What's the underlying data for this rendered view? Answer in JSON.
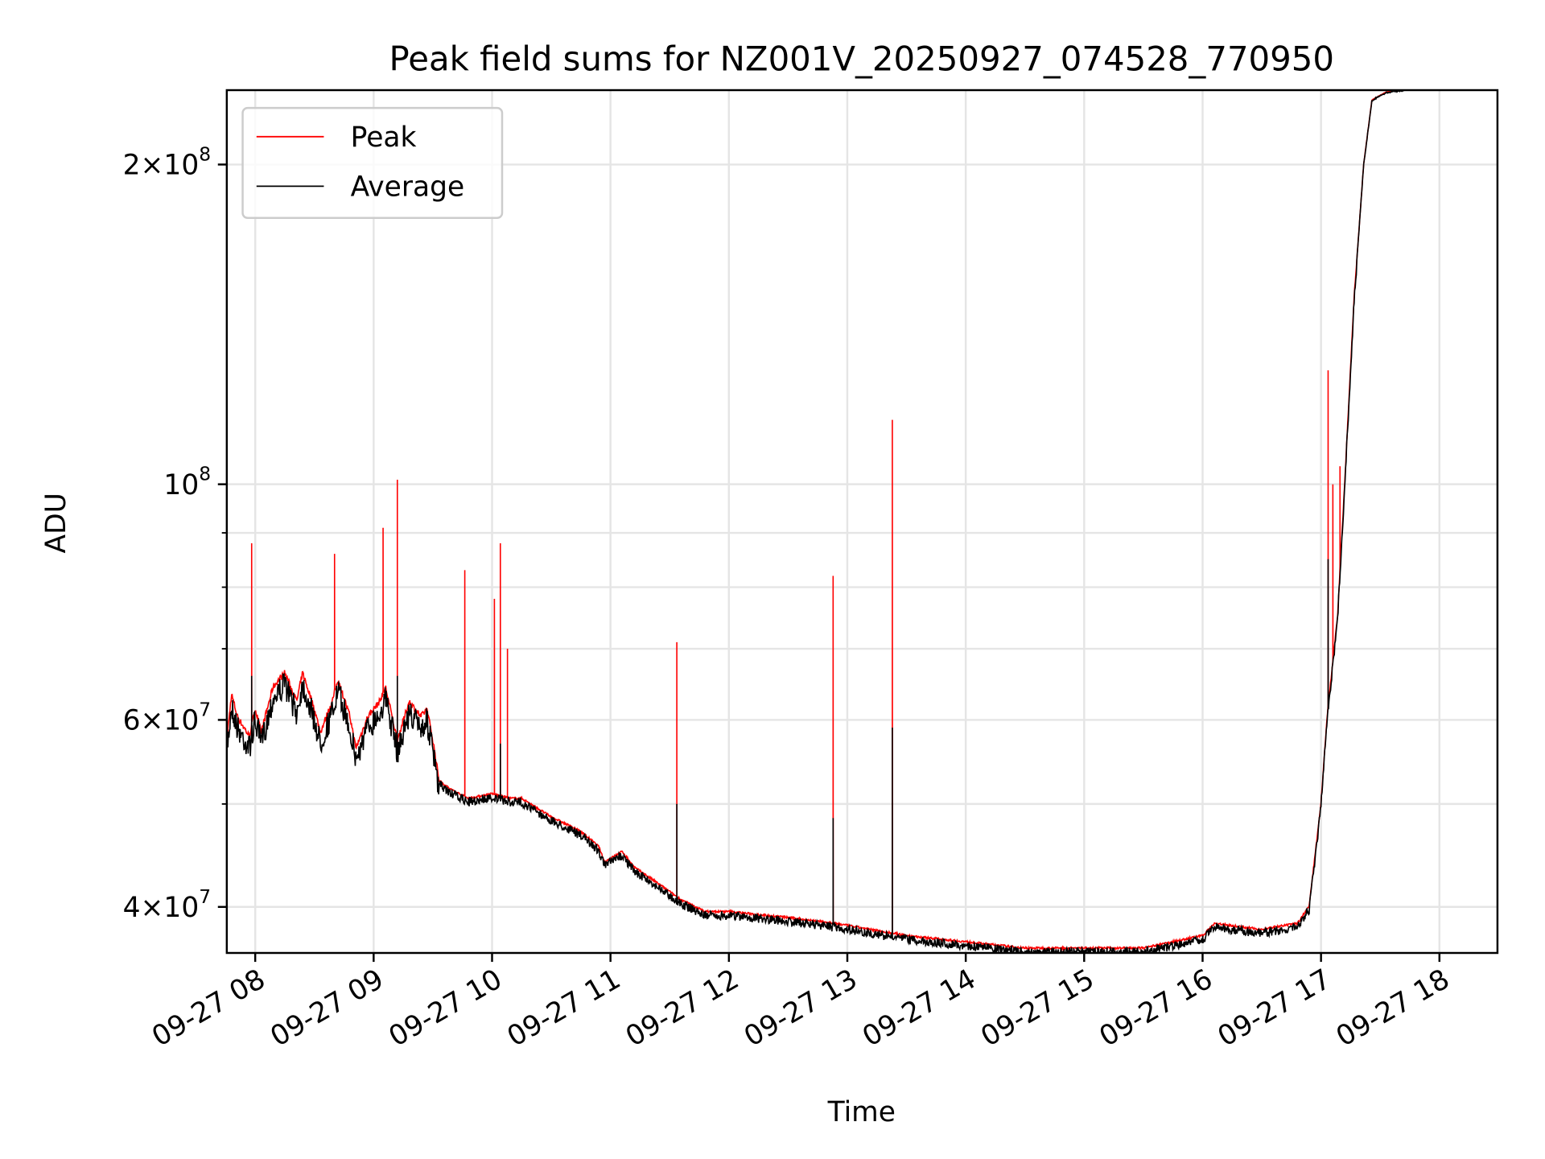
{
  "chart_data": {
    "type": "line",
    "title": "Peak field sums for NZ001V_20250927_074528_770950",
    "xlabel": "Time",
    "ylabel": "ADU",
    "yscale": "log",
    "xlim_hours": [
      7.76,
      18.49
    ],
    "ylim": [
      36200000,
      235000000
    ],
    "grid": true,
    "legend_position": "upper-left",
    "x_ticks": [
      {
        "hour": 8,
        "label": "09-27 08"
      },
      {
        "hour": 9,
        "label": "09-27 09"
      },
      {
        "hour": 10,
        "label": "09-27 10"
      },
      {
        "hour": 11,
        "label": "09-27 11"
      },
      {
        "hour": 12,
        "label": "09-27 12"
      },
      {
        "hour": 13,
        "label": "09-27 13"
      },
      {
        "hour": 14,
        "label": "09-27 14"
      },
      {
        "hour": 15,
        "label": "09-27 15"
      },
      {
        "hour": 16,
        "label": "09-27 16"
      },
      {
        "hour": 17,
        "label": "09-27 17"
      },
      {
        "hour": 18,
        "label": "09-27 18"
      }
    ],
    "y_major_ticks": [
      {
        "value": 40000000,
        "mant": "4",
        "exp": "7"
      },
      {
        "value": 60000000,
        "mant": "6",
        "exp": "7"
      },
      {
        "value": 100000000,
        "mant": "",
        "exp": "8"
      },
      {
        "value": 200000000,
        "mant": "2",
        "exp": "8"
      }
    ],
    "y_minor_ticks": [
      50000000,
      70000000,
      80000000,
      90000000
    ],
    "series": [
      {
        "name": "Peak",
        "color": "#ff0000"
      },
      {
        "name": "Average",
        "color": "#000000"
      }
    ],
    "average_trend": [
      [
        7.76,
        57000000.0
      ],
      [
        7.8,
        63000000.0
      ],
      [
        7.85,
        60000000.0
      ],
      [
        7.95,
        57500000.0
      ],
      [
        8.0,
        61000000.0
      ],
      [
        8.05,
        58000000.0
      ],
      [
        8.15,
        64000000.0
      ],
      [
        8.25,
        66000000.0
      ],
      [
        8.35,
        62000000.0
      ],
      [
        8.4,
        66000000.0
      ],
      [
        8.5,
        61000000.0
      ],
      [
        8.55,
        58000000.0
      ],
      [
        8.65,
        62000000.0
      ],
      [
        8.7,
        65000000.0
      ],
      [
        8.8,
        60000000.0
      ],
      [
        8.85,
        56000000.0
      ],
      [
        8.95,
        60000000.0
      ],
      [
        9.05,
        62000000.0
      ],
      [
        9.1,
        64000000.0
      ],
      [
        9.2,
        57000000.0
      ],
      [
        9.3,
        62000000.0
      ],
      [
        9.4,
        60000000.0
      ],
      [
        9.45,
        61000000.0
      ],
      [
        9.5,
        57000000.0
      ],
      [
        9.55,
        52500000.0
      ],
      [
        9.65,
        51500000.0
      ],
      [
        9.8,
        50500000.0
      ],
      [
        10.0,
        51000000.0
      ],
      [
        10.15,
        50500000.0
      ],
      [
        10.25,
        50500000.0
      ],
      [
        10.5,
        48500000.0
      ],
      [
        10.75,
        47000000.0
      ],
      [
        10.9,
        45500000.0
      ],
      [
        10.95,
        44000000.0
      ],
      [
        11.1,
        45000000.0
      ],
      [
        11.2,
        43500000.0
      ],
      [
        11.4,
        42000000.0
      ],
      [
        11.6,
        40500000.0
      ],
      [
        11.8,
        39500000.0
      ],
      [
        12.0,
        39500000.0
      ],
      [
        12.5,
        39000000.0
      ],
      [
        12.9,
        38500000.0
      ],
      [
        13.5,
        37500000.0
      ],
      [
        14.0,
        37000000.0
      ],
      [
        14.5,
        36500000.0
      ],
      [
        15.0,
        36500000.0
      ],
      [
        15.5,
        36500000.0
      ],
      [
        16.0,
        37500000.0
      ],
      [
        16.1,
        38500000.0
      ],
      [
        16.5,
        38000000.0
      ],
      [
        16.8,
        38500000.0
      ],
      [
        16.9,
        40000000.0
      ],
      [
        17.0,
        50000000.0
      ],
      [
        17.05,
        60000000.0
      ],
      [
        17.14,
        75000000.0
      ],
      [
        17.2,
        100000000.0
      ],
      [
        17.28,
        150000000.0
      ],
      [
        17.36,
        200000000.0
      ],
      [
        17.43,
        230000000.0
      ],
      [
        17.55,
        234000000.0
      ],
      [
        17.7,
        235000000.0
      ]
    ],
    "peak_spikes": [
      [
        7.97,
        88000000.0
      ],
      [
        8.67,
        86000000.0
      ],
      [
        9.08,
        91000000.0
      ],
      [
        9.2,
        101000000.0
      ],
      [
        9.77,
        83000000.0
      ],
      [
        10.02,
        78000000.0
      ],
      [
        10.07,
        88000000.0
      ],
      [
        10.13,
        70000000.0
      ],
      [
        11.56,
        71000000.0
      ],
      [
        12.88,
        82000000.0
      ],
      [
        13.38,
        115000000.0
      ],
      [
        17.06,
        128000000.0
      ],
      [
        17.1,
        100000000.0
      ],
      [
        17.16,
        104000000.0
      ]
    ],
    "average_spikes": [
      [
        7.97,
        66000000.0
      ],
      [
        9.2,
        66000000.0
      ],
      [
        10.07,
        57000000.0
      ],
      [
        11.56,
        50000000.0
      ],
      [
        12.88,
        48500000.0
      ],
      [
        13.38,
        59000000.0
      ],
      [
        17.06,
        85000000.0
      ]
    ]
  }
}
